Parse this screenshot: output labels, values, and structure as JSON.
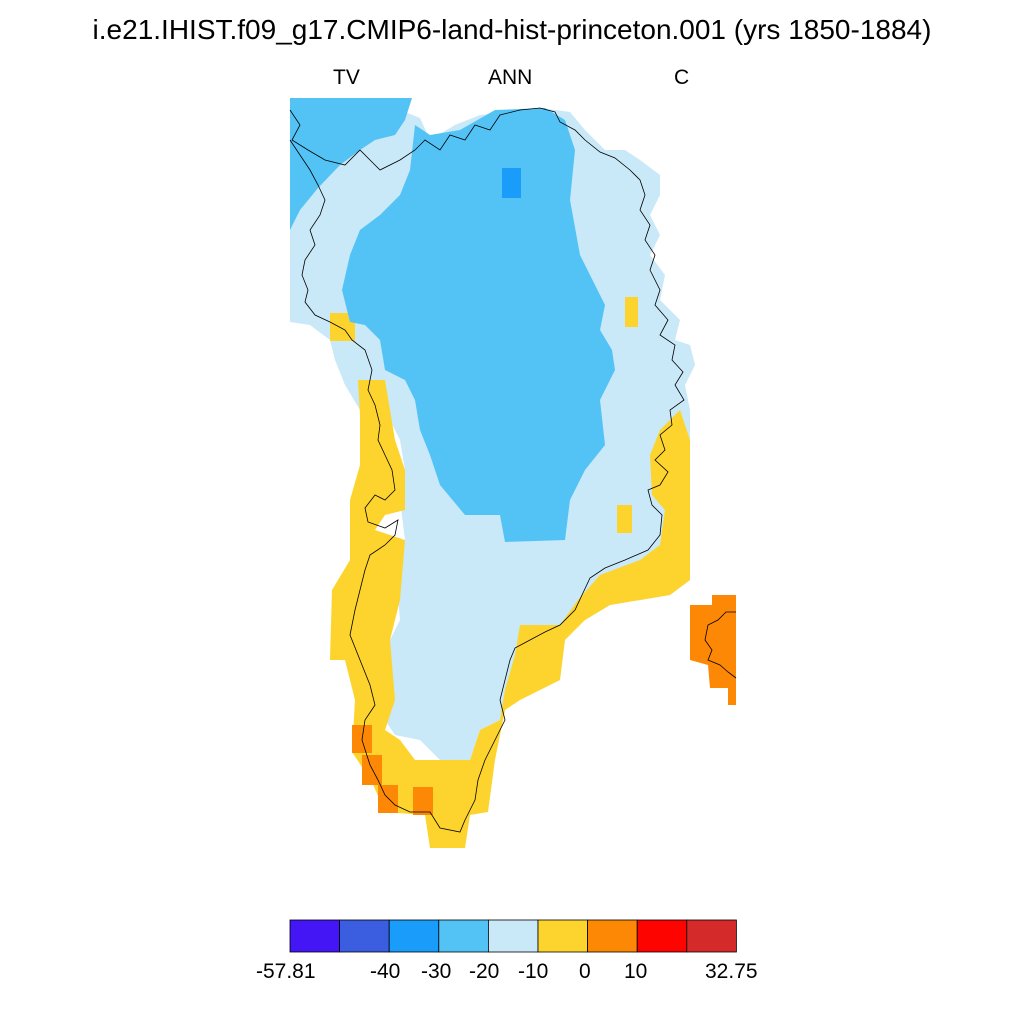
{
  "title": "i.e21.IHIST.f09_g17.CMIP6-land-hist-princeton.001 (yrs 1850-1884)",
  "subtitles": {
    "left": "TV",
    "center": "ANN",
    "right": "C"
  },
  "colorbar": {
    "labels": [
      "-57.81",
      "-40",
      "-30",
      "-20",
      "-10",
      "0",
      "10",
      "32.75"
    ],
    "colors": [
      "#4416f5",
      "#3b5ee0",
      "#1a9cfa",
      "#53c3f6",
      "#c9e8f8",
      "#fdd42d",
      "#fc8806",
      "#fd0400",
      "#d42a2a"
    ]
  },
  "map": {
    "region": "Greenland",
    "variable": "TV",
    "period": "ANN",
    "units": "C",
    "categories": [
      "-40 to -30",
      "-30 to -20",
      "-20 to -10",
      "-10 to 0",
      "0 to 10"
    ]
  }
}
